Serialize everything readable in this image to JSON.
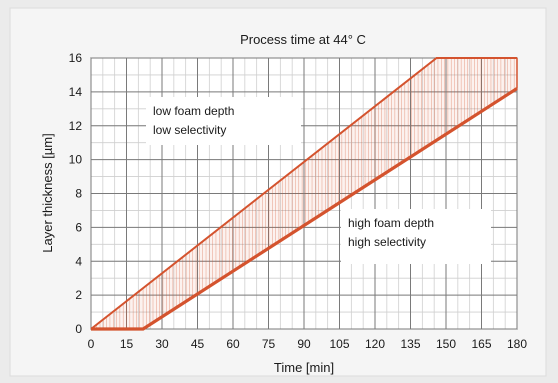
{
  "chart_data": {
    "type": "area",
    "title": "Process time at 44° C",
    "xlabel": "Time [min]",
    "ylabel": "Layer thickness [µm]",
    "xlim": [
      0,
      180
    ],
    "ylim": [
      0,
      16
    ],
    "x_ticks": [
      0,
      15,
      30,
      45,
      60,
      75,
      90,
      105,
      120,
      135,
      150,
      165,
      180
    ],
    "y_ticks": [
      0,
      2,
      4,
      6,
      8,
      10,
      12,
      14,
      16
    ],
    "grid": true,
    "series": [
      {
        "x": [
          0,
          146,
          180
        ],
        "y": [
          0,
          16,
          16
        ],
        "color": "#d4532e"
      },
      {
        "x": [
          0,
          22,
          180
        ],
        "y": [
          0,
          0,
          14.2
        ],
        "color": "#d4532e"
      }
    ],
    "fill_between": true,
    "annotations": [
      {
        "lines": [
          "low foam depth",
          "low selectivity"
        ]
      },
      {
        "lines": [
          "high foam depth",
          "high selectivity"
        ]
      }
    ]
  }
}
